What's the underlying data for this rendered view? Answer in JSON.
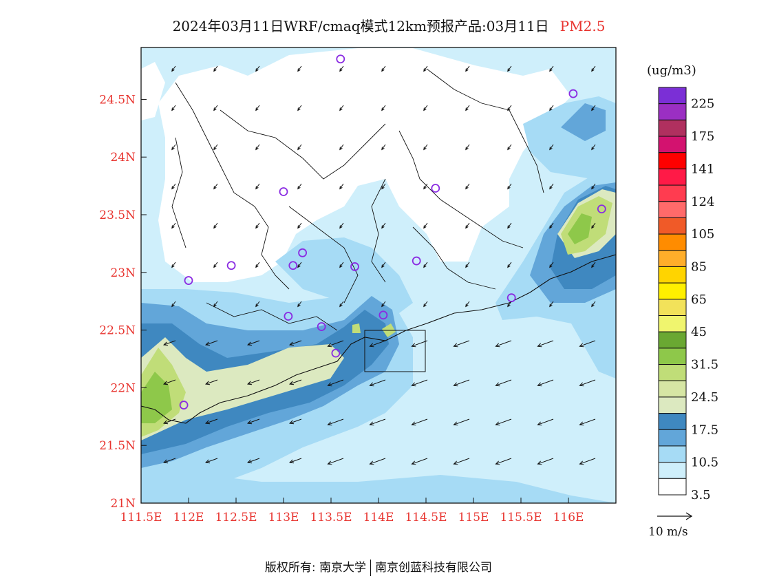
{
  "title": {
    "main": "2024年03月11日WRF/cmaq模式12km预报产品:03月11日",
    "pollutant": "PM2.5"
  },
  "map": {
    "lon_labels": [
      "111.5E",
      "112E",
      "112.5E",
      "113E",
      "113.5E",
      "114E",
      "114.5E",
      "115E",
      "115.5E",
      "116E"
    ],
    "lat_labels": [
      "24.5N",
      "24N",
      "23.5N",
      "23N",
      "22.5N",
      "22N",
      "21.5N",
      "21N"
    ],
    "lon_range": [
      111.5,
      116.5
    ],
    "lat_range": [
      21,
      24.95
    ],
    "station_marker": "circle-icon",
    "wind_arrow": "arrow-icon"
  },
  "legend": {
    "unit": "(ug/m3)",
    "labels": [
      "225",
      "175",
      "141",
      "124",
      "105",
      "85",
      "65",
      "45",
      "31.5",
      "24.5",
      "17.5",
      "10.5",
      "3.5"
    ],
    "colors_top_to_bottom": [
      "#7b2fd6",
      "#9b2fc3",
      "#b0305f",
      "#d3126f",
      "#ff0000",
      "#ff1a47",
      "#ff3c50",
      "#ff6a6a",
      "#f05a28",
      "#ff8c00",
      "#ffae2a",
      "#ffd400",
      "#fff000",
      "#f2e25a",
      "#f0f56e",
      "#6aa832",
      "#8ec84a",
      "#c0dd78",
      "#d6e6a4",
      "#dce9c0",
      "#3f88c0",
      "#62a6d9",
      "#a6dbf5",
      "#cfeffb",
      "#ffffff"
    ]
  },
  "wind": {
    "scale_label": "10 m/s"
  },
  "footer": {
    "left": "版权所有: 南京大学",
    "right": "南京创蓝科技有限公司"
  }
}
